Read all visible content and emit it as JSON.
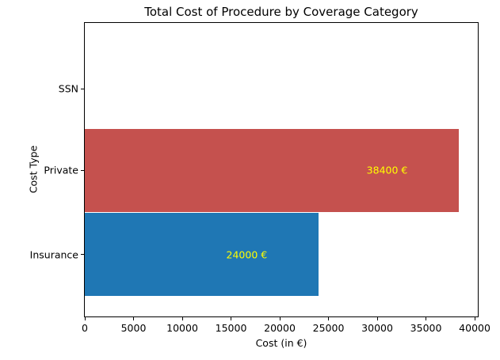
{
  "chart_data": {
    "type": "bar",
    "orientation": "horizontal",
    "title": "Total Cost of Procedure by Coverage Category",
    "xlabel": "Cost (in €)",
    "ylabel": "Cost Type",
    "categories": [
      "SSN",
      "Private",
      "Insurance"
    ],
    "values": [
      0,
      38400,
      24000
    ],
    "bar_colors": [
      "",
      "#c5514e",
      "#1f77b4"
    ],
    "annotations": [
      "",
      "38400 €",
      "24000 €"
    ],
    "annotation_color": "#ffff00",
    "xticks": [
      0,
      5000,
      10000,
      15000,
      20000,
      25000,
      30000,
      35000,
      40000
    ],
    "xlim": [
      0,
      40320
    ],
    "grid": false,
    "legend": "none",
    "background_color": "#ffffff",
    "axis_color": "#000000"
  }
}
